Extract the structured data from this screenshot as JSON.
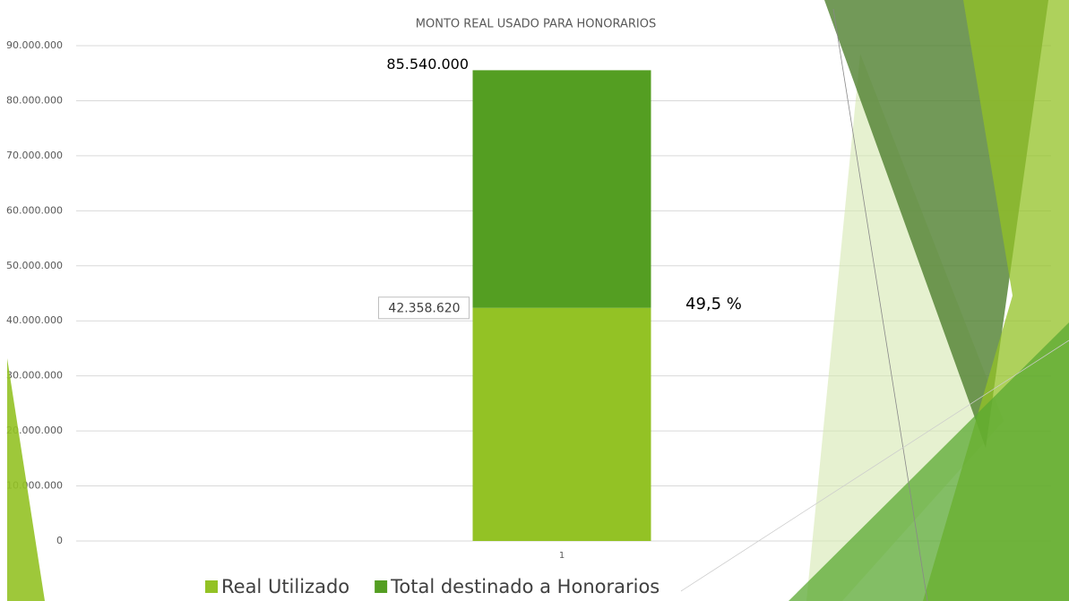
{
  "chart_data": {
    "type": "stacked_bar",
    "title": "MONTO REAL USADO PARA HONORARIOS",
    "categories": [
      "1"
    ],
    "series": [
      {
        "name": "Real Utilizado",
        "color": "#93c225",
        "values": [
          42358620
        ],
        "value_labels": [
          "42.358.620"
        ]
      },
      {
        "name": "Total destinado a Honorarios",
        "color": "#549e22",
        "values": [
          43181380
        ]
      }
    ],
    "annotations": [
      {
        "text": "85.540.000",
        "value": 85540000
      },
      {
        "text": "49,5 %"
      }
    ],
    "ylim": [
      0,
      90000000
    ],
    "yticks": [
      0,
      {
        "value": 10000000,
        "label": "10.000.000"
      },
      {
        "value": 20000000,
        "label": "20.000.000"
      },
      {
        "value": 30000000,
        "label": "30.000.000"
      },
      {
        "value": 40000000,
        "label": "40.000.000"
      },
      {
        "value": 50000000,
        "label": "50.000.000"
      },
      {
        "value": 60000000,
        "label": "60.000.000"
      },
      {
        "value": 70000000,
        "label": "70.000.000"
      },
      {
        "value": 80000000,
        "label": "80.000.000"
      },
      {
        "value": 90000000,
        "label": "90.000.000"
      }
    ],
    "grid": true,
    "legend": "bottom"
  }
}
